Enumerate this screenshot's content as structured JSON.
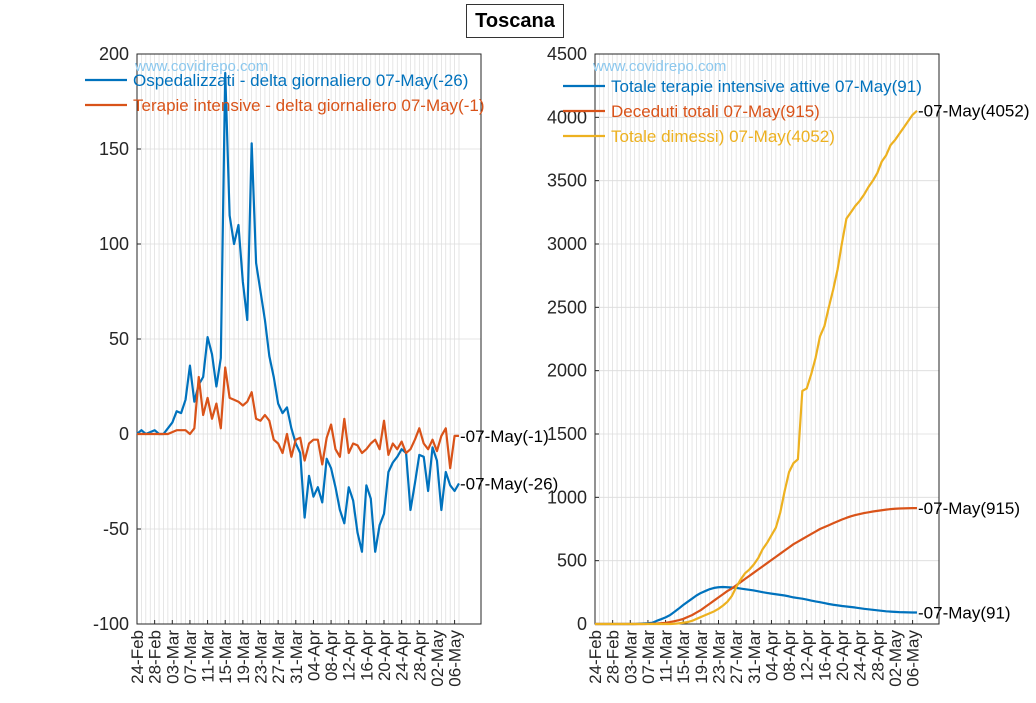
{
  "figure_title": "Toscana",
  "colors": {
    "blue": "#0072BD",
    "orange": "#D95319",
    "yellow": "#EDB120",
    "grid": "#dcdcdc",
    "watermark": "#8cc8ee"
  },
  "dates": [
    "24-Feb",
    "25-Feb",
    "26-Feb",
    "27-Feb",
    "28-Feb",
    "29-Feb",
    "01-Mar",
    "02-Mar",
    "03-Mar",
    "04-Mar",
    "05-Mar",
    "06-Mar",
    "07-Mar",
    "08-Mar",
    "09-Mar",
    "10-Mar",
    "11-Mar",
    "12-Mar",
    "13-Mar",
    "14-Mar",
    "15-Mar",
    "16-Mar",
    "17-Mar",
    "18-Mar",
    "19-Mar",
    "20-Mar",
    "21-Mar",
    "22-Mar",
    "23-Mar",
    "24-Mar",
    "25-Mar",
    "26-Mar",
    "27-Mar",
    "28-Mar",
    "29-Mar",
    "30-Mar",
    "31-Mar",
    "01-Apr",
    "02-Apr",
    "03-Apr",
    "04-Apr",
    "05-Apr",
    "06-Apr",
    "07-Apr",
    "08-Apr",
    "09-Apr",
    "10-Apr",
    "11-Apr",
    "12-Apr",
    "13-Apr",
    "14-Apr",
    "15-Apr",
    "16-Apr",
    "17-Apr",
    "18-Apr",
    "19-Apr",
    "20-Apr",
    "21-Apr",
    "22-Apr",
    "23-Apr",
    "24-Apr",
    "25-Apr",
    "26-Apr",
    "27-Apr",
    "28-Apr",
    "29-Apr",
    "30-Apr",
    "01-May",
    "02-May",
    "03-May",
    "04-May",
    "05-May",
    "06-May",
    "07-May"
  ],
  "chart_data": [
    {
      "type": "line",
      "watermark": "www.covidrepo.com",
      "xtick_labels": [
        "24-Feb",
        "28-Feb",
        "03-Mar",
        "07-Mar",
        "11-Mar",
        "15-Mar",
        "19-Mar",
        "23-Mar",
        "27-Mar",
        "31-Mar",
        "04-Apr",
        "08-Apr",
        "12-Apr",
        "16-Apr",
        "20-Apr",
        "24-Apr",
        "28-Apr",
        "02-May",
        "06-May"
      ],
      "ylim": [
        -100,
        200
      ],
      "yticks": [
        -100,
        -50,
        0,
        50,
        100,
        150,
        200
      ],
      "grid": true,
      "legend_location": "top-left",
      "series": [
        {
          "name": "Ospedalizzati - delta giornaliero 07-May(-26)",
          "color": "#0072BD",
          "end_label": "-07-May(-26)",
          "values": [
            0,
            2,
            0,
            1,
            2,
            0,
            0,
            3,
            6,
            12,
            11,
            18,
            36,
            17,
            26,
            30,
            51,
            42,
            25,
            40,
            190,
            115,
            100,
            110,
            80,
            60,
            153,
            90,
            75,
            60,
            41,
            30,
            16,
            11,
            14,
            3,
            -5,
            -10,
            -44,
            -22,
            -33,
            -28,
            -36,
            -13,
            -18,
            -28,
            -40,
            -47,
            -28,
            -35,
            -52,
            -62,
            -27,
            -34,
            -62,
            -48,
            -42,
            -20,
            -15,
            -12,
            -8,
            -10,
            -40,
            -26,
            -11,
            -12,
            -30,
            -7,
            -14,
            -40,
            -20,
            -27,
            -30,
            -26
          ]
        },
        {
          "name": "Terapie intensive - delta giornaliero 07-May(-1)",
          "color": "#D95319",
          "end_label": "-07-May(-1)",
          "values": [
            0,
            0,
            0,
            0,
            0,
            0,
            0,
            0,
            1,
            2,
            2,
            2,
            0,
            3,
            30,
            10,
            19,
            8,
            16,
            3,
            35,
            19,
            18,
            17,
            15,
            17,
            22,
            8,
            7,
            10,
            7,
            -3,
            -5,
            -10,
            0,
            -12,
            -3,
            -2,
            -14,
            -5,
            -3,
            -3,
            -16,
            -2,
            5,
            -8,
            -12,
            8,
            -10,
            -5,
            -6,
            -10,
            -8,
            -5,
            -3,
            -8,
            7,
            -11,
            -5,
            -8,
            -4,
            -10,
            -8,
            -3,
            3,
            -5,
            -8,
            -3,
            -9,
            -1,
            3,
            -18,
            -1,
            -1
          ]
        }
      ]
    },
    {
      "type": "line",
      "watermark": "www.covidrepo.com",
      "xtick_labels": [
        "24-Feb",
        "28-Feb",
        "03-Mar",
        "07-Mar",
        "11-Mar",
        "15-Mar",
        "19-Mar",
        "23-Mar",
        "27-Mar",
        "31-Mar",
        "04-Apr",
        "08-Apr",
        "12-Apr",
        "16-Apr",
        "20-Apr",
        "24-Apr",
        "28-Apr",
        "02-May",
        "06-May"
      ],
      "ylim": [
        0,
        4500
      ],
      "yticks": [
        0,
        500,
        1000,
        1500,
        2000,
        2500,
        3000,
        3500,
        4000,
        4500
      ],
      "grid": true,
      "legend_location": "top-left",
      "series": [
        {
          "name": "Totale terapie intensive attive 07-May(91)",
          "color": "#0072BD",
          "end_label": "-07-May(91)",
          "values": [
            0,
            0,
            0,
            0,
            0,
            0,
            0,
            0,
            0,
            0,
            2,
            4,
            6,
            10,
            25,
            38,
            52,
            70,
            96,
            122,
            150,
            175,
            200,
            225,
            245,
            260,
            275,
            285,
            290,
            292,
            290,
            288,
            285,
            280,
            275,
            270,
            265,
            258,
            251,
            245,
            240,
            235,
            230,
            225,
            218,
            210,
            205,
            200,
            193,
            185,
            178,
            172,
            165,
            158,
            152,
            147,
            142,
            138,
            134,
            130,
            125,
            120,
            116,
            112,
            108,
            104,
            100,
            98,
            96,
            94,
            93,
            92,
            91,
            91
          ]
        },
        {
          "name": "Deceduti totali 07-May(915)",
          "color": "#D95319",
          "end_label": "-07-May(915)",
          "values": [
            0,
            0,
            0,
            0,
            0,
            0,
            0,
            0,
            0,
            0,
            0,
            0,
            1,
            2,
            3,
            6,
            9,
            15,
            22,
            30,
            40,
            55,
            70,
            90,
            110,
            135,
            160,
            185,
            210,
            235,
            260,
            280,
            305,
            330,
            355,
            380,
            405,
            430,
            455,
            480,
            505,
            530,
            555,
            580,
            605,
            630,
            650,
            670,
            690,
            710,
            730,
            750,
            765,
            780,
            795,
            810,
            825,
            838,
            850,
            860,
            868,
            876,
            882,
            888,
            893,
            898,
            903,
            907,
            910,
            912,
            913,
            914,
            915,
            915
          ]
        },
        {
          "name": "Totale dimessi) 07-May(4052)",
          "color": "#EDB120",
          "end_label": "-07-May(4052)",
          "values": [
            0,
            0,
            0,
            0,
            0,
            0,
            0,
            0,
            0,
            0,
            0,
            0,
            0,
            0,
            0,
            0,
            0,
            0,
            2,
            5,
            10,
            15,
            25,
            40,
            55,
            70,
            85,
            100,
            120,
            145,
            175,
            220,
            290,
            350,
            400,
            430,
            470,
            520,
            590,
            640,
            700,
            760,
            880,
            1050,
            1200,
            1270,
            1300,
            1840,
            1860,
            1970,
            2100,
            2270,
            2350,
            2500,
            2640,
            2800,
            3010,
            3200,
            3250,
            3300,
            3340,
            3390,
            3450,
            3500,
            3560,
            3650,
            3700,
            3780,
            3820,
            3870,
            3920,
            3970,
            4020,
            4052
          ]
        }
      ]
    }
  ]
}
